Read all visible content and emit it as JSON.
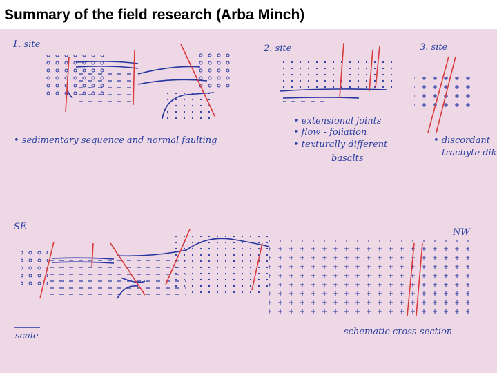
{
  "header": {
    "title": "Summary of the field research (Arba Minch)"
  },
  "sketch": {
    "sites": [
      {
        "label": "1. site",
        "notes": [
          "• sedimentary sequence and normal faulting"
        ]
      },
      {
        "label": "2. site",
        "notes": [
          "• extensional joints",
          "• flow - foliation",
          "• texturally different",
          "basalts"
        ]
      },
      {
        "label": "3. site",
        "notes": [
          "• discordant",
          "trachyte dike"
        ]
      }
    ],
    "cross_section": {
      "left": "SE",
      "right": "NW",
      "scale": "scale",
      "caption": "schematic cross-section"
    }
  }
}
